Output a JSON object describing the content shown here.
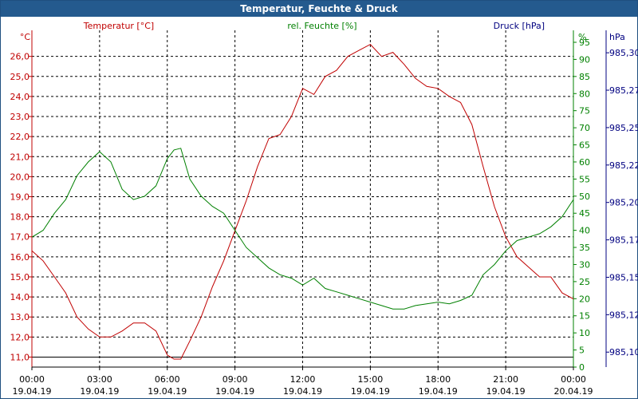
{
  "window": {
    "title": "Temperatur, Feuchte & Druck"
  },
  "colors": {
    "temperature": "#c00000",
    "humidity": "#008000",
    "pressure": "#000080",
    "grid": "#000000",
    "title_bar": "#245a8e"
  },
  "chart_data": {
    "type": "line",
    "title": "Temperatur, Feuchte & Druck",
    "grid": true,
    "x_ticks": [
      {
        "time": "00:00",
        "date": "19.04.19"
      },
      {
        "time": "03:00",
        "date": "19.04.19"
      },
      {
        "time": "06:00",
        "date": "19.04.19"
      },
      {
        "time": "09:00",
        "date": "19.04.19"
      },
      {
        "time": "12:00",
        "date": "19.04.19"
      },
      {
        "time": "15:00",
        "date": "19.04.19"
      },
      {
        "time": "18:00",
        "date": "19.04.19"
      },
      {
        "time": "21:00",
        "date": "19.04.19"
      },
      {
        "time": "00:00",
        "date": "20.04.19"
      }
    ],
    "axes": {
      "temperature": {
        "label": "Temperatur [°C]",
        "unit": "°C",
        "range": [
          10.5,
          27.3
        ],
        "ticks": [
          "11,0",
          "12,0",
          "13,0",
          "14,0",
          "15,0",
          "16,0",
          "17,0",
          "18,0",
          "19,0",
          "20,0",
          "21,0",
          "22,0",
          "23,0",
          "24,0",
          "25,0",
          "26,0"
        ],
        "tick_values": [
          11,
          12,
          13,
          14,
          15,
          16,
          17,
          18,
          19,
          20,
          21,
          22,
          23,
          24,
          25,
          26
        ]
      },
      "humidity": {
        "label": "rel. Feuchte [%]",
        "unit": "%",
        "range": [
          0,
          98.5
        ],
        "ticks": [
          "0",
          "5",
          "10",
          "15",
          "20",
          "25",
          "30",
          "35",
          "40",
          "45",
          "50",
          "55",
          "60",
          "65",
          "70",
          "75",
          "80",
          "85",
          "90",
          "95"
        ],
        "tick_values": [
          0,
          5,
          10,
          15,
          20,
          25,
          30,
          35,
          40,
          45,
          50,
          55,
          60,
          65,
          70,
          75,
          80,
          85,
          90,
          95
        ]
      },
      "pressure": {
        "label": "Druck [hPa]",
        "unit": "hPa",
        "range": [
          985.09,
          985.315
        ],
        "ticks": [
          "985,10",
          "985,12",
          "985,15",
          "985,17",
          "985,20",
          "985,22",
          "985,25",
          "985,27",
          "985,30"
        ],
        "tick_values": [
          985.1,
          985.125,
          985.15,
          985.175,
          985.2,
          985.225,
          985.25,
          985.275,
          985.3
        ]
      }
    },
    "series": [
      {
        "name": "Temperatur [°C]",
        "axis": "temperature",
        "color": "#c00000",
        "hours": [
          0,
          0.5,
          1,
          1.5,
          2,
          2.5,
          3,
          3.5,
          4,
          4.5,
          5,
          5.5,
          6,
          6.3,
          6.6,
          7,
          7.5,
          8,
          8.5,
          9,
          9.5,
          10,
          10.5,
          11,
          11.5,
          12,
          12.5,
          13,
          13.5,
          14,
          14.5,
          15,
          15.5,
          16,
          16.5,
          17,
          17.5,
          18,
          18.5,
          19,
          19.5,
          20,
          20.5,
          21,
          21.5,
          22,
          22.5,
          23,
          23.5,
          24
        ],
        "values": [
          16.3,
          15.8,
          15.0,
          14.2,
          13.0,
          12.4,
          12.0,
          12.0,
          12.3,
          12.7,
          12.7,
          12.3,
          11.1,
          10.9,
          10.9,
          11.8,
          13.0,
          14.5,
          15.8,
          17.3,
          18.8,
          20.5,
          21.9,
          22.1,
          23.0,
          24.4,
          24.1,
          25.0,
          25.3,
          26.0,
          26.3,
          26.6,
          26.0,
          26.2,
          25.6,
          24.9,
          24.5,
          24.4,
          24.0,
          23.7,
          22.6,
          20.5,
          18.5,
          17.0,
          16.0,
          15.5,
          15.0,
          15.0,
          14.2,
          13.9
        ]
      },
      {
        "name": "rel. Feuchte [%]",
        "axis": "humidity",
        "color": "#008000",
        "hours": [
          0,
          0.5,
          1,
          1.5,
          2,
          2.5,
          3,
          3.5,
          4,
          4.5,
          5,
          5.5,
          6,
          6.3,
          6.6,
          7,
          7.5,
          8,
          8.5,
          9,
          9.5,
          10,
          10.5,
          11,
          11.5,
          12,
          12.5,
          13,
          13.5,
          14,
          14.5,
          15,
          15.5,
          16,
          16.5,
          17,
          17.5,
          18,
          18.5,
          19,
          19.5,
          20,
          20.5,
          21,
          21.5,
          22,
          22.5,
          23,
          23.5,
          24
        ],
        "values": [
          38,
          40,
          45,
          49,
          56,
          60,
          63,
          60,
          52,
          49,
          50,
          53,
          61,
          63.5,
          64,
          55,
          50,
          47,
          45,
          40,
          35,
          32,
          29,
          27,
          26,
          24,
          26,
          23,
          22,
          21,
          20,
          19,
          18,
          17,
          17,
          18,
          18.5,
          19,
          18.5,
          19.5,
          21,
          27,
          30,
          34,
          37,
          38,
          39,
          41,
          44,
          49
        ]
      }
    ]
  }
}
